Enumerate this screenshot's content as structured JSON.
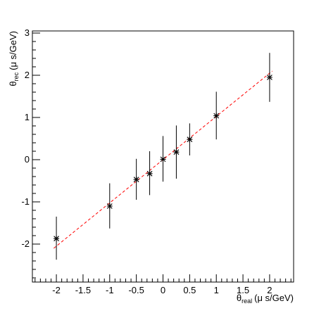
{
  "chart_data": {
    "type": "scatter",
    "xlabel": {
      "symbol": "θ",
      "subscript": "real",
      "unit": "(μ s/GeV)"
    },
    "ylabel": {
      "symbol": "θ",
      "subscript": "rec",
      "unit": "(μ s/GeV)"
    },
    "xlim": [
      -2.45,
      2.45
    ],
    "ylim": [
      -2.9,
      3.05
    ],
    "x_ticks": [
      -2,
      -1.5,
      -1,
      -0.5,
      0,
      0.5,
      1,
      1.5,
      2
    ],
    "x_tick_labels": [
      "-2",
      "-1.5",
      "-1",
      "-0.5",
      "0",
      "0.5",
      "1",
      "1.5",
      "2"
    ],
    "y_ticks": [
      -2,
      -1,
      0,
      1,
      2,
      3
    ],
    "y_tick_labels": [
      "-2",
      "-1",
      "0",
      "1",
      "2",
      "3"
    ],
    "grid": false,
    "points": [
      {
        "x": -2.0,
        "y": -1.87,
        "err_low": 0.5,
        "err_high": 0.52
      },
      {
        "x": -1.0,
        "y": -1.1,
        "err_low": 0.53,
        "err_high": 0.54
      },
      {
        "x": -0.5,
        "y": -0.47,
        "err_low": 0.48,
        "err_high": 0.49
      },
      {
        "x": -0.25,
        "y": -0.33,
        "err_low": 0.51,
        "err_high": 0.53
      },
      {
        "x": 0.0,
        "y": 0.01,
        "err_low": 0.53,
        "err_high": 0.55
      },
      {
        "x": 0.25,
        "y": 0.18,
        "err_low": 0.63,
        "err_high": 0.63
      },
      {
        "x": 0.5,
        "y": 0.48,
        "err_low": 0.38,
        "err_high": 0.38
      },
      {
        "x": 1.0,
        "y": 1.04,
        "err_low": 0.56,
        "err_high": 0.57
      },
      {
        "x": 2.0,
        "y": 1.95,
        "err_low": 0.58,
        "err_high": 0.58
      }
    ],
    "fit_line": {
      "x": [
        -2.05,
        2.05
      ],
      "y": [
        -2.1,
        2.1
      ],
      "color": "#ff0000",
      "style": "dashed"
    },
    "marker_color": "#000000"
  }
}
